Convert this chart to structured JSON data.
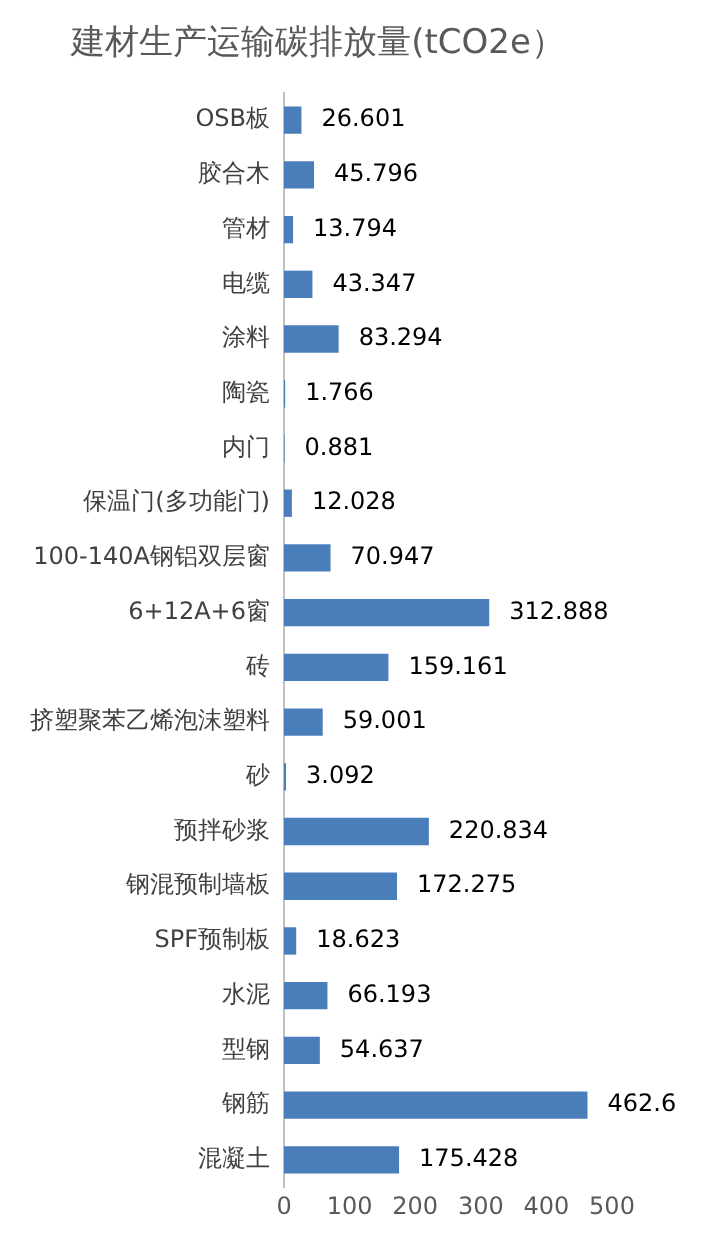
{
  "chart_data": {
    "type": "bar",
    "orientation": "horizontal",
    "title": "建材生产运输碳排放量(tCO2e）",
    "categories": [
      "OSB板",
      "胶合木",
      "管材",
      "电缆",
      "涂料",
      "陶瓷",
      "内门",
      "保温门(多功能门)",
      "100-140A钢铝双层窗",
      "6+12A+6窗",
      "砖",
      "挤塑聚苯乙烯泡沫塑料",
      "砂",
      "预拌砂浆",
      "钢混预制墙板",
      "SPF预制板",
      "水泥",
      "型钢",
      "钢筋",
      "混凝土"
    ],
    "values": [
      26.601,
      45.796,
      13.794,
      43.347,
      83.294,
      1.766,
      0.881,
      12.028,
      70.947,
      312.888,
      159.161,
      59.001,
      3.092,
      220.834,
      172.275,
      18.623,
      66.193,
      54.637,
      462.6,
      175.428
    ],
    "color": "#4a7ebb",
    "xlim": [
      0,
      500
    ],
    "xticks": [
      0,
      100,
      200,
      300,
      400,
      500
    ],
    "data_labels": true
  }
}
